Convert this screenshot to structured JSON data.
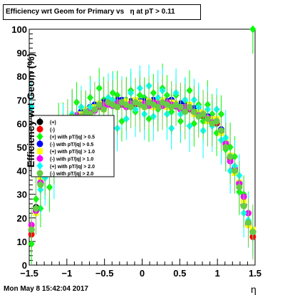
{
  "chart_data": {
    "type": "scatter",
    "title": "Efficiency wrt Geom for Primary vs   η at pT > 0.11",
    "xlabel": "η",
    "ylabel": "Efficiency wrt Geom (%)",
    "xlim": [
      -1.5,
      1.5
    ],
    "ylim": [
      0,
      100
    ],
    "x_ticks": [
      -1.5,
      -1,
      -0.5,
      0,
      0.5,
      1,
      1.5
    ],
    "x_tick_labels": [
      "−1.5",
      "−1",
      "−0.5",
      "0",
      "0.5",
      "1",
      "1.5"
    ],
    "y_ticks": [
      0,
      10,
      20,
      30,
      40,
      50,
      60,
      70,
      80,
      90,
      100
    ],
    "y_tick_labels": [
      "0",
      "10",
      "20",
      "30",
      "40",
      "50",
      "60",
      "70",
      "80",
      "90",
      "100"
    ],
    "grid": false,
    "legend_position": "middle-left",
    "series": [
      {
        "name": "(+)",
        "color": "#000000",
        "marker": "circle"
      },
      {
        "name": "(-)",
        "color": "#ff0000",
        "marker": "circle"
      },
      {
        "name": "(+) with pT/|q| > 0.5",
        "color": "#00ff00",
        "marker": "diamond"
      },
      {
        "name": "(-) with pT/|q| > 0.5",
        "color": "#0000ff",
        "marker": "circle"
      },
      {
        "name": "(+) with pT/|q| > 1.0",
        "color": "#ffff00",
        "marker": "square"
      },
      {
        "name": "(-) with pT/|q| > 1.0",
        "color": "#ff00ff",
        "marker": "circle"
      },
      {
        "name": "(+) with pT/|q| > 2.0",
        "color": "#00ffff",
        "marker": "diamond"
      },
      {
        "name": "(-) with pT/|q| > 2.0",
        "color": "#66cc44",
        "marker": "circle"
      }
    ],
    "profile": {
      "x": [
        -1.47,
        -1.41,
        -1.35,
        -1.29,
        -1.23,
        -1.17,
        -1.11,
        -1.05,
        -0.99,
        -0.93,
        -0.87,
        -0.81,
        -0.75,
        -0.69,
        -0.63,
        -0.57,
        -0.51,
        -0.45,
        -0.39,
        -0.33,
        -0.27,
        -0.21,
        -0.15,
        -0.09,
        -0.03,
        0.03,
        0.09,
        0.15,
        0.21,
        0.27,
        0.33,
        0.39,
        0.45,
        0.51,
        0.57,
        0.63,
        0.69,
        0.75,
        0.81,
        0.87,
        0.93,
        0.99,
        1.05,
        1.11,
        1.17,
        1.23,
        1.29,
        1.35,
        1.41,
        1.47
      ],
      "y": [
        15,
        24,
        34,
        40,
        41,
        43,
        50,
        56,
        59,
        61,
        62,
        63,
        64,
        65,
        66,
        67,
        67,
        68,
        68,
        68,
        68,
        68,
        68,
        68,
        68,
        68,
        68,
        68,
        68,
        68,
        68,
        68,
        67,
        67,
        66,
        66,
        65,
        64,
        63,
        62,
        61,
        60,
        57,
        51,
        45,
        40,
        34,
        25,
        18,
        14
      ]
    },
    "offsets": [
      [
        0,
        0.5,
        0.3,
        -0.4,
        0.2,
        -0.3,
        0.4,
        -0.2,
        0.1,
        0.3,
        -0.5,
        0.2,
        0.4,
        -0.2,
        0.3,
        0.1,
        -0.4,
        0.2,
        0.5,
        -0.3,
        0.1,
        0.4,
        -0.2,
        0.3,
        0.2,
        -0.1,
        0.4,
        -0.3,
        0.2,
        0.5,
        -0.2,
        0.1,
        0.3,
        -0.4,
        0.2,
        0.1,
        -0.3,
        0.4,
        0.2,
        -0.2,
        0.3,
        0.1,
        -0.4,
        0.2,
        0.3,
        -0.2,
        0.4,
        0.1,
        -0.3,
        0.2
      ],
      [
        -2,
        -1,
        0.6,
        -0.8,
        0.5,
        -0.6,
        0.8,
        -0.5,
        0.4,
        0.7,
        -0.6,
        0.5,
        0.3,
        -0.4,
        0.6,
        0.2,
        -0.5,
        0.4,
        0.7,
        -0.5,
        0.3,
        0.6,
        -0.4,
        0.5,
        0.4,
        -0.3,
        0.6,
        -0.5,
        0.4,
        0.7,
        -0.4,
        0.3,
        0.5,
        -0.6,
        0.4,
        0.3,
        -0.5,
        0.6,
        0.4,
        -0.4,
        0.5,
        0.3,
        -0.6,
        0.4,
        0.5,
        -0.4,
        0.6,
        0.3,
        -1,
        -2
      ],
      [
        -6,
        4,
        -10,
        -3,
        -8,
        4,
        9,
        5,
        -6,
        3,
        7,
        -5,
        2,
        6,
        -4,
        8,
        3,
        -9,
        5,
        4,
        -7,
        2,
        6,
        -3,
        4,
        3,
        -6,
        5,
        -2,
        7,
        4,
        -3,
        5,
        -6,
        3,
        8,
        -5,
        4,
        -2,
        6,
        3,
        -4,
        7,
        -2,
        5,
        6,
        -3,
        5,
        4,
        86
      ],
      [
        0,
        -0.5,
        1,
        0.5,
        1.5,
        1,
        0.5,
        1,
        1.5,
        1,
        1.5,
        2,
        1.5,
        2,
        2,
        1.5,
        2,
        2,
        1.5,
        2,
        2,
        1.5,
        1.5,
        1.5,
        1.5,
        1.5,
        1.5,
        2,
        1.5,
        1.5,
        1.5,
        2,
        1.5,
        1.5,
        1.5,
        1,
        1.5,
        1.5,
        1,
        1,
        1,
        1,
        0.5,
        1,
        1,
        0.5,
        1,
        0.5,
        0,
        0
      ],
      [
        1,
        -2,
        2,
        1,
        2,
        -1,
        1.5,
        -1,
        2,
        1,
        -1.5,
        1,
        2,
        -1,
        1,
        1.5,
        -1,
        1,
        2,
        -1,
        1,
        1.5,
        -1,
        2,
        1,
        -1,
        1.5,
        -1,
        1,
        2,
        -1,
        1,
        1.5,
        -1,
        1,
        2,
        -1,
        1,
        1.5,
        -1,
        1,
        2,
        -1,
        1,
        1.5,
        -1,
        1,
        2,
        -1,
        1
      ],
      [
        2,
        -1,
        1,
        0.5,
        -0.5,
        -1,
        0.5,
        1,
        0,
        -0.5,
        1.5,
        -1,
        0.5,
        1,
        -0.5,
        0.5,
        1,
        0,
        -0.5,
        1,
        0.5,
        -1,
        0.5,
        1,
        0,
        0.5,
        -0.5,
        1,
        0.5,
        -0.5,
        1,
        0,
        0.5,
        -1,
        1,
        0.5,
        0,
        -0.5,
        1,
        0.5,
        -0.5,
        1,
        0,
        0.5,
        -1,
        1,
        0.5,
        4,
        4,
        0
      ],
      [
        52,
        0,
        -2,
        -3,
        1,
        -4,
        4,
        2,
        -5,
        3,
        -2,
        4,
        -3,
        2,
        -4,
        1,
        -7,
        3,
        2,
        -10,
        1,
        -6,
        5,
        -2,
        7,
        -4,
        8,
        -5,
        3,
        6,
        -4,
        -10,
        6,
        -3,
        4,
        -7,
        5,
        3,
        -6,
        4,
        -2,
        6,
        -4,
        3,
        -5,
        2,
        4,
        -3,
        1,
        0
      ],
      [
        0,
        0,
        0,
        0,
        -1,
        1,
        2,
        -1,
        1,
        2,
        -1,
        0,
        1,
        -1,
        0,
        1,
        -1,
        1,
        0,
        -1,
        1,
        0,
        -1,
        1,
        0,
        -1,
        1,
        0,
        -1,
        1,
        0,
        -1,
        1,
        0,
        -1,
        1,
        0,
        -1,
        1,
        0,
        -1,
        1,
        0,
        -1,
        1,
        0,
        -1,
        0,
        0,
        0
      ]
    ],
    "errors": [
      1.5,
      2,
      8,
      2,
      2,
      2,
      9,
      9
    ]
  },
  "footer": {
    "date": "Mon May  8 15:42:04 2017"
  }
}
